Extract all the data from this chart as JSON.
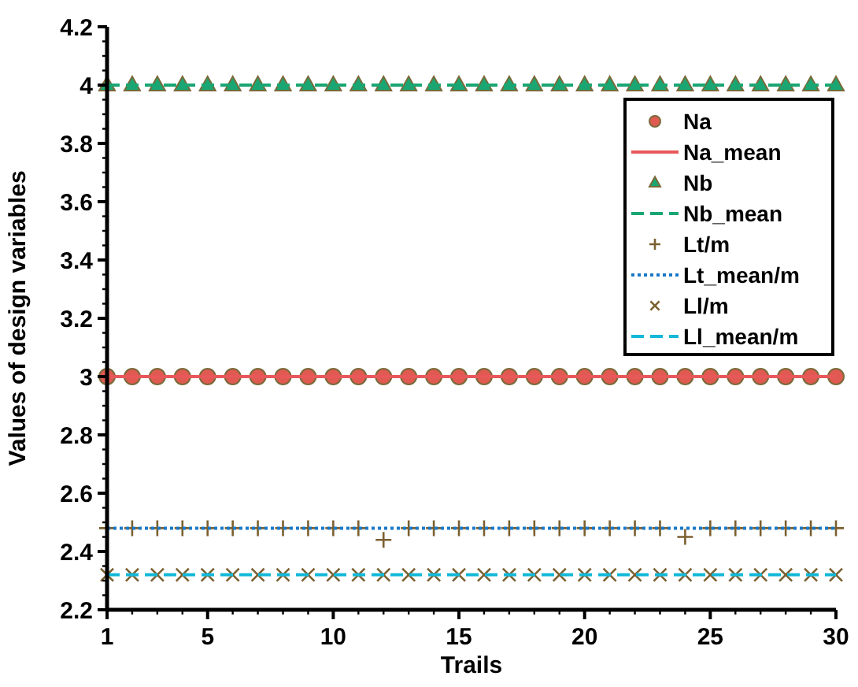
{
  "chart_data": {
    "type": "scatter",
    "xlabel": "Trails",
    "ylabel": "Values of design variables",
    "x": [
      1,
      2,
      3,
      4,
      5,
      6,
      7,
      8,
      9,
      10,
      11,
      12,
      13,
      14,
      15,
      16,
      17,
      18,
      19,
      20,
      21,
      22,
      23,
      24,
      25,
      26,
      27,
      28,
      29,
      30
    ],
    "xlim": [
      1,
      30
    ],
    "xticks": [
      1,
      5,
      10,
      15,
      20,
      25,
      30
    ],
    "ylim": [
      2.2,
      4.2
    ],
    "yticks": [
      2.2,
      2.4,
      2.6,
      2.8,
      3,
      3.2,
      3.4,
      3.6,
      3.8,
      4,
      4.2
    ],
    "grid": false,
    "legend": "top right",
    "series": [
      {
        "name": "Na",
        "marker": "circle",
        "color": "#e05a52",
        "values": [
          3,
          3,
          3,
          3,
          3,
          3,
          3,
          3,
          3,
          3,
          3,
          3,
          3,
          3,
          3,
          3,
          3,
          3,
          3,
          3,
          3,
          3,
          3,
          3,
          3,
          3,
          3,
          3,
          3,
          3
        ]
      },
      {
        "name": "Na_mean",
        "type": "line",
        "marker": "none",
        "line_style": "solid",
        "color": "#e8585a",
        "values": [
          3,
          3,
          3,
          3,
          3,
          3,
          3,
          3,
          3,
          3,
          3,
          3,
          3,
          3,
          3,
          3,
          3,
          3,
          3,
          3,
          3,
          3,
          3,
          3,
          3,
          3,
          3,
          3,
          3,
          3
        ]
      },
      {
        "name": "Nb",
        "marker": "triangle",
        "color": "#1aa673",
        "values": [
          4,
          4,
          4,
          4,
          4,
          4,
          4,
          4,
          4,
          4,
          4,
          4,
          4,
          4,
          4,
          4,
          4,
          4,
          4,
          4,
          4,
          4,
          4,
          4,
          4,
          4,
          4,
          4,
          4,
          4
        ]
      },
      {
        "name": "Nb_mean",
        "type": "line",
        "marker": "none",
        "line_style": "dashed",
        "color": "#1aa673",
        "values": [
          4,
          4,
          4,
          4,
          4,
          4,
          4,
          4,
          4,
          4,
          4,
          4,
          4,
          4,
          4,
          4,
          4,
          4,
          4,
          4,
          4,
          4,
          4,
          4,
          4,
          4,
          4,
          4,
          4,
          4
        ]
      },
      {
        "name": "Lt/m",
        "marker": "plus",
        "color": "#7a6030",
        "values": [
          2.48,
          2.48,
          2.48,
          2.48,
          2.48,
          2.48,
          2.48,
          2.48,
          2.48,
          2.48,
          2.48,
          2.44,
          2.48,
          2.48,
          2.48,
          2.48,
          2.48,
          2.48,
          2.48,
          2.48,
          2.48,
          2.48,
          2.48,
          2.45,
          2.48,
          2.48,
          2.48,
          2.48,
          2.48,
          2.48
        ]
      },
      {
        "name": "Lt_mean/m",
        "type": "line",
        "marker": "none",
        "line_style": "dotted",
        "color": "#1a78c8",
        "values": [
          2.48,
          2.48,
          2.48,
          2.48,
          2.48,
          2.48,
          2.48,
          2.48,
          2.48,
          2.48,
          2.48,
          2.48,
          2.48,
          2.48,
          2.48,
          2.48,
          2.48,
          2.48,
          2.48,
          2.48,
          2.48,
          2.48,
          2.48,
          2.48,
          2.48,
          2.48,
          2.48,
          2.48,
          2.48,
          2.48
        ]
      },
      {
        "name": "Ll/m",
        "marker": "cross",
        "color": "#7a6030",
        "values": [
          2.32,
          2.32,
          2.32,
          2.32,
          2.32,
          2.32,
          2.32,
          2.32,
          2.32,
          2.32,
          2.32,
          2.32,
          2.32,
          2.32,
          2.32,
          2.32,
          2.32,
          2.32,
          2.32,
          2.32,
          2.32,
          2.32,
          2.32,
          2.32,
          2.32,
          2.32,
          2.32,
          2.32,
          2.32,
          2.32
        ]
      },
      {
        "name": "Ll_mean/m",
        "type": "line",
        "marker": "none",
        "line_style": "dashed",
        "color": "#14b8d8",
        "values": [
          2.32,
          2.32,
          2.32,
          2.32,
          2.32,
          2.32,
          2.32,
          2.32,
          2.32,
          2.32,
          2.32,
          2.32,
          2.32,
          2.32,
          2.32,
          2.32,
          2.32,
          2.32,
          2.32,
          2.32,
          2.32,
          2.32,
          2.32,
          2.32,
          2.32,
          2.32,
          2.32,
          2.32,
          2.32,
          2.32
        ]
      }
    ]
  }
}
